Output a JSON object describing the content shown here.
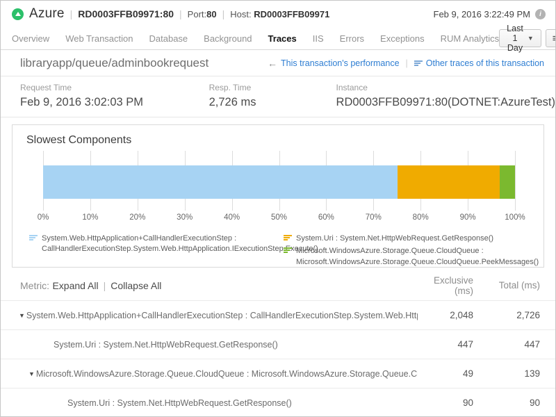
{
  "header": {
    "app_name": "Azure",
    "app_id": "RD0003FFB09971:80",
    "separator": "|",
    "port_label": "Port:",
    "port_value": "80",
    "host_label": "Host: ",
    "host_value": "RD0003FFB09971",
    "timestamp": "Feb 9, 2016 3:22:49 PM",
    "info_icon": "i"
  },
  "nav": {
    "tabs": [
      {
        "label": "Overview",
        "active": false
      },
      {
        "label": "Web Transaction",
        "active": false
      },
      {
        "label": "Database",
        "active": false
      },
      {
        "label": "Background",
        "active": false
      },
      {
        "label": "Traces",
        "active": true
      },
      {
        "label": "IIS",
        "active": false
      },
      {
        "label": "Errors",
        "active": false
      },
      {
        "label": "Exceptions",
        "active": false
      },
      {
        "label": "RUM Analytics",
        "active": false
      }
    ],
    "time_range": "Last 1 Day",
    "time_caret": "▼",
    "menu_icon": "≡"
  },
  "trace": {
    "title": "libraryapp/queue/adminbookrequest",
    "back_arrow": "←",
    "link_performance": "This transaction's performance",
    "link_sep": "|",
    "link_other_traces": "Other traces of this transaction",
    "summary": [
      {
        "label": "Request Time",
        "value": "Feb 9, 2016 3:02:03 PM"
      },
      {
        "label": "Resp. Time",
        "value": "2,726 ms"
      },
      {
        "label": "Instance",
        "value": "RD0003FFB09971:80(DOTNET:AzureTest)"
      }
    ]
  },
  "chart_data": {
    "type": "bar",
    "subtype": "horizontal-stacked-percent",
    "title": "Slowest Components",
    "xlim": [
      0,
      100
    ],
    "x_ticks": [
      "0%",
      "10%",
      "20%",
      "30%",
      "40%",
      "50%",
      "60%",
      "70%",
      "80%",
      "90%",
      "100%"
    ],
    "grid": true,
    "legend_position": "bottom",
    "series": [
      {
        "name": "System.Web.HttpApplication+CallHandlerExecutionStep : CallHandlerExecutionStep.System.Web.HttpApplication.IExecutionStep.Execute()",
        "value_pct": 75.1,
        "color": "#A7D3F3"
      },
      {
        "name": "System.Uri : System.Net.HttpWebRequest.GetResponse()",
        "value_pct": 21.7,
        "color": "#F0AB00"
      },
      {
        "name": "Microsoft.WindowsAzure.Storage.Queue.CloudQueue : Microsoft.WindowsAzure.Storage.Queue.CloudQueue.PeekMessages()",
        "value_pct": 3.2,
        "color": "#7BB92F"
      }
    ]
  },
  "table": {
    "metric_label": "Metric:",
    "expand_all": "Expand All",
    "sep": "|",
    "collapse_all": "Collapse All",
    "col_exclusive": "Exclusive (ms)",
    "col_total": "Total (ms)",
    "rows": [
      {
        "expander": "▼",
        "indent": 26,
        "metric": "System.Web.HttpApplication+CallHandlerExecutionStep : CallHandlerExecutionStep.System.Web.HttpApplication",
        "exclusive": "2,048",
        "total": "2,726"
      },
      {
        "expander": "",
        "indent": 74,
        "metric": "System.Uri : System.Net.HttpWebRequest.GetResponse()",
        "exclusive": "447",
        "total": "447"
      },
      {
        "expander": "▼",
        "indent": 40,
        "metric": "Microsoft.WindowsAzure.Storage.Queue.CloudQueue : Microsoft.WindowsAzure.Storage.Queue.CloudQueue",
        "exclusive": "49",
        "total": "139"
      },
      {
        "expander": "",
        "indent": 94,
        "metric": "System.Uri : System.Net.HttpWebRequest.GetResponse()",
        "exclusive": "90",
        "total": "90"
      }
    ]
  }
}
